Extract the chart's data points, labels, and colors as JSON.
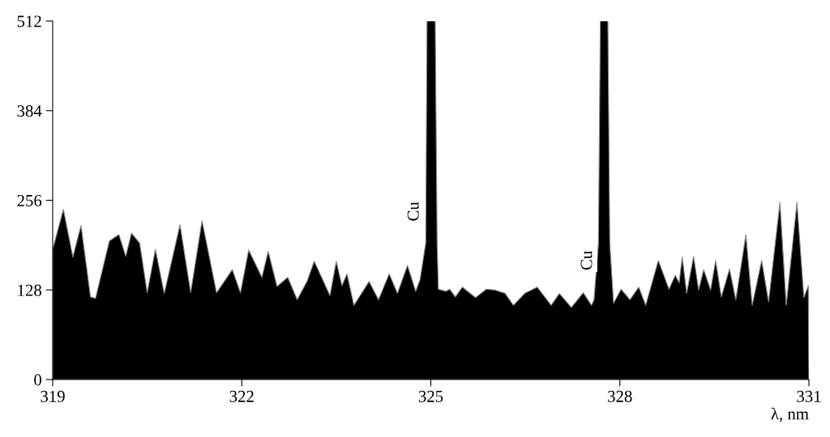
{
  "chart_data": {
    "type": "area",
    "xlabel": "λ, nm",
    "xlim": [
      319,
      331
    ],
    "xticks": [
      319,
      322,
      325,
      328,
      331
    ],
    "ylim": [
      0,
      512
    ],
    "yticks": [
      0,
      128,
      256,
      384,
      512
    ],
    "grid": false,
    "legend": false,
    "x": [
      319.0,
      319.17,
      319.32,
      319.45,
      319.6,
      319.68,
      319.9,
      320.05,
      320.16,
      320.25,
      320.38,
      320.5,
      320.63,
      320.77,
      321.02,
      321.19,
      321.37,
      321.6,
      321.85,
      321.98,
      322.11,
      322.32,
      322.42,
      322.56,
      322.73,
      322.88,
      323.04,
      323.15,
      323.4,
      323.5,
      323.59,
      323.67,
      323.78,
      324.02,
      324.17,
      324.34,
      324.47,
      324.63,
      324.76,
      324.83,
      324.92,
      324.94,
      325.07,
      325.1,
      325.12,
      325.24,
      325.3,
      325.39,
      325.5,
      325.71,
      325.88,
      326.01,
      326.18,
      326.31,
      326.49,
      326.69,
      326.91,
      327.04,
      327.23,
      327.42,
      327.55,
      327.59,
      327.66,
      327.69,
      327.81,
      327.84,
      327.9,
      328.02,
      328.16,
      328.3,
      328.41,
      328.61,
      328.78,
      328.88,
      328.94,
      328.99,
      329.06,
      329.17,
      329.25,
      329.33,
      329.44,
      329.52,
      329.61,
      329.74,
      329.84,
      330.0,
      330.1,
      330.25,
      330.36,
      330.54,
      330.64,
      330.81,
      330.92,
      330.99,
      331.0
    ],
    "series": [
      {
        "color": "#000000",
        "values": [
          186,
          243,
          175,
          220,
          118,
          116,
          198,
          207,
          176,
          209,
          195,
          124,
          186,
          123,
          221,
          124,
          227,
          124,
          157,
          124,
          185,
          146,
          183,
          133,
          146,
          114,
          141,
          169,
          120,
          169,
          134,
          151,
          106,
          140,
          114,
          151,
          123,
          163,
          126,
          143,
          195,
          512,
          512,
          195,
          129,
          126,
          129,
          118,
          132,
          117,
          129,
          128,
          123,
          106,
          123,
          132,
          106,
          123,
          103,
          124,
          106,
          114,
          195,
          512,
          512,
          195,
          109,
          129,
          114,
          132,
          106,
          170,
          129,
          149,
          138,
          175,
          123,
          176,
          128,
          157,
          128,
          170,
          118,
          158,
          114,
          207,
          106,
          170,
          111,
          253,
          106,
          253,
          117,
          134,
          0
        ]
      }
    ],
    "annotations": [
      {
        "text": "Cu",
        "x": 324.9,
        "y": 240
      },
      {
        "text": "Cu",
        "x": 327.65,
        "y": 170
      }
    ]
  }
}
